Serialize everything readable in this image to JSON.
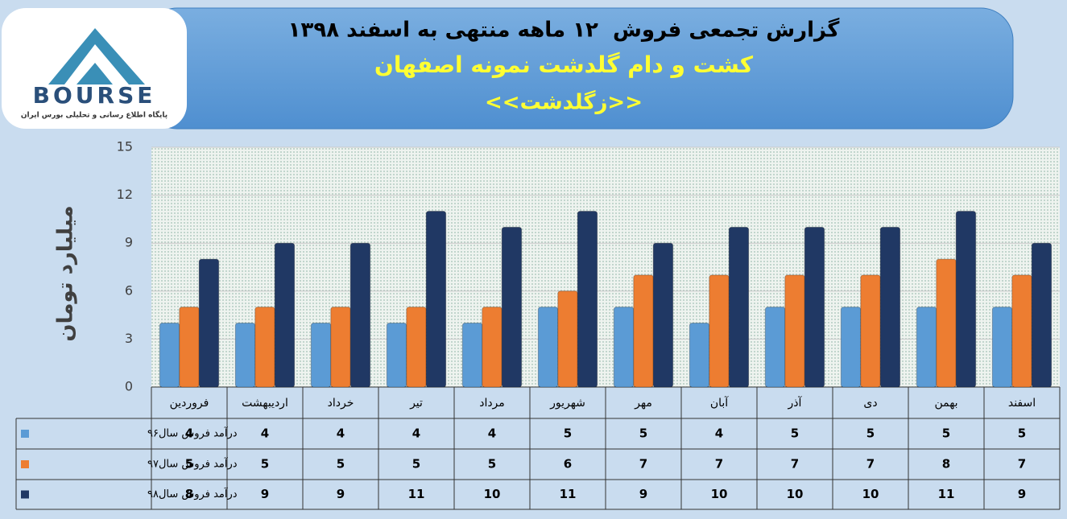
{
  "logo": {
    "name": "BOURSE",
    "tagline": "پایگاه اطلاع رسانی و تحلیلی بورس ایران"
  },
  "chart_data": {
    "type": "bar",
    "title": "گزارش تجمعی فروش  ۱۲ ماهه منتهی به اسفند ۱۳۹۸",
    "subtitle": "کشت و دام گلدشت نمونه اصفهان",
    "annotation": "<<زگلدشت>>",
    "y_label": "میلیارد تومان",
    "categories": [
      "فروردین",
      "اردیبهشت",
      "خرداد",
      "تیر",
      "مرداد",
      "شهریور",
      "مهر",
      "آبان",
      "آذر",
      "دی",
      "بهمن",
      "اسفند"
    ],
    "series": [
      {
        "name": "درآمد فروش سال۹۶",
        "color": "#5b9bd5",
        "values": [
          4,
          4,
          4,
          4,
          4,
          5,
          5,
          4,
          5,
          5,
          5,
          5
        ]
      },
      {
        "name": "درآمد فروش سال۹۷",
        "color": "#ed7d31",
        "values": [
          5,
          5,
          5,
          5,
          5,
          6,
          7,
          7,
          7,
          7,
          8,
          7
        ]
      },
      {
        "name": "درآمد فروش سال۹۸",
        "color": "#203864",
        "values": [
          8,
          9,
          9,
          11,
          10,
          11,
          9,
          10,
          10,
          10,
          11,
          9
        ]
      }
    ],
    "ylim": [
      0,
      15
    ],
    "yticks": [
      0,
      3,
      6,
      9,
      12,
      15
    ],
    "grid": true
  }
}
